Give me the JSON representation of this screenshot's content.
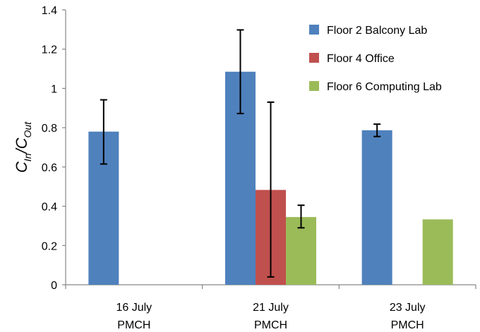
{
  "chart_data": {
    "type": "bar",
    "categories": [
      {
        "line1": "16 July",
        "line2": "PMCH"
      },
      {
        "line1": "21 July",
        "line2": "PMCH"
      },
      {
        "line1": "23 July",
        "line2": "PMCH"
      }
    ],
    "ylabel": {
      "main1": "C",
      "sub1": "In",
      "slash": "/",
      "main2": "C",
      "sub2": "Out"
    },
    "ylim": [
      0,
      1.4
    ],
    "yticks": [
      "0",
      "0.2",
      "0.4",
      "0.6",
      "0.8",
      "1",
      "1.2",
      "1.4"
    ],
    "legend_position": "top-right",
    "grid": false,
    "series": [
      {
        "name": "Floor 2 Balcony Lab",
        "color": "#4f81bd",
        "values": [
          0.78,
          1.085,
          0.787
        ],
        "errors": [
          [
            0.615,
            0.942
          ],
          [
            0.872,
            1.298
          ],
          [
            0.755,
            0.818
          ]
        ]
      },
      {
        "name": "Floor 4 Office",
        "color": "#c0504d",
        "values": [
          null,
          0.483,
          null
        ],
        "errors": [
          null,
          [
            0.04,
            0.93
          ],
          null
        ]
      },
      {
        "name": "Floor 6 Computing Lab",
        "color": "#9bbb59",
        "values": [
          null,
          0.345,
          0.333
        ],
        "errors": [
          null,
          [
            0.29,
            0.405
          ],
          null
        ]
      }
    ]
  }
}
